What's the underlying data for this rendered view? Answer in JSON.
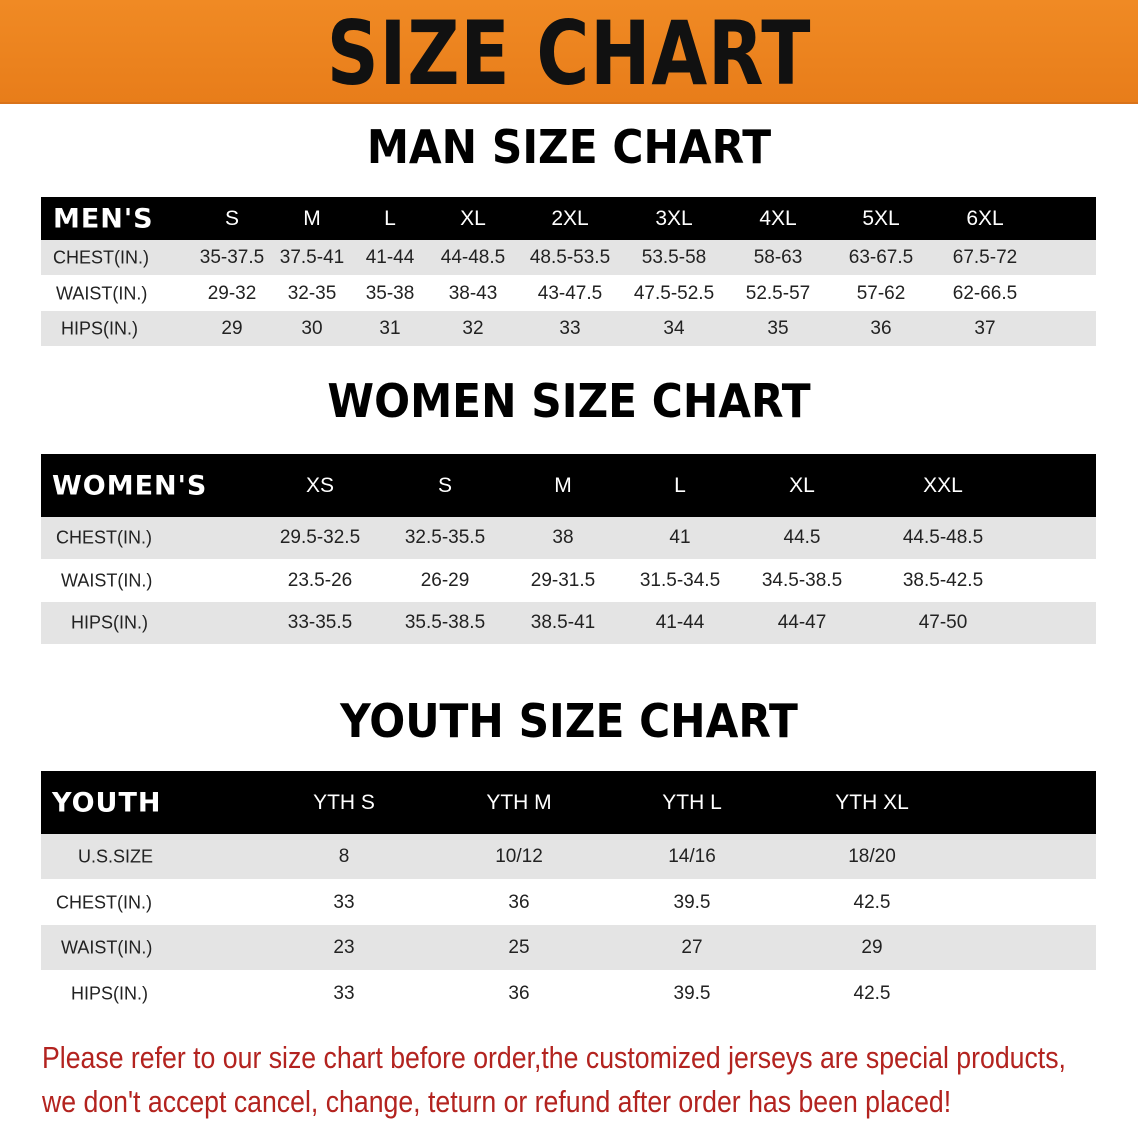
{
  "banner_title": "SIZE CHART",
  "colors": {
    "banner": "#ec8320",
    "header_row": "#000000",
    "shaded_row": "#e4e4e4",
    "notice_text": "#b3231f"
  },
  "chart_data": [
    {
      "type": "table",
      "title": "MAN SIZE CHART",
      "corner": "MEN'S",
      "columns": [
        "S",
        "M",
        "L",
        "XL",
        "2XL",
        "3XL",
        "4XL",
        "5XL",
        "6XL"
      ],
      "rows": [
        {
          "label": "CHEST(IN.)",
          "values": [
            "35-37.5",
            "37.5-41",
            "41-44",
            "44-48.5",
            "48.5-53.5",
            "53.5-58",
            "58-63",
            "63-67.5",
            "67.5-72"
          ]
        },
        {
          "label": "WAIST(IN.)",
          "values": [
            "29-32",
            "32-35",
            "35-38",
            "38-43",
            "43-47.5",
            "47.5-52.5",
            "52.5-57",
            "57-62",
            "62-66.5"
          ]
        },
        {
          "label": "HIPS(IN.)",
          "values": [
            "29",
            "30",
            "31",
            "32",
            "33",
            "34",
            "35",
            "36",
            "37"
          ]
        }
      ]
    },
    {
      "type": "table",
      "title": "WOMEN SIZE CHART",
      "corner": "WOMEN'S",
      "columns": [
        "XS",
        "S",
        "M",
        "L",
        "XL",
        "XXL"
      ],
      "rows": [
        {
          "label": "CHEST(IN.)",
          "values": [
            "29.5-32.5",
            "32.5-35.5",
            "38",
            "41",
            "44.5",
            "44.5-48.5"
          ]
        },
        {
          "label": "WAIST(IN.)",
          "values": [
            "23.5-26",
            "26-29",
            "29-31.5",
            "31.5-34.5",
            "34.5-38.5",
            "38.5-42.5"
          ]
        },
        {
          "label": "HIPS(IN.)",
          "values": [
            "33-35.5",
            "35.5-38.5",
            "38.5-41",
            "41-44",
            "44-47",
            "47-50"
          ]
        }
      ]
    },
    {
      "type": "table",
      "title": "YOUTH SIZE CHART",
      "corner": "YOUTH",
      "columns": [
        "YTH S",
        "YTH M",
        "YTH L",
        "YTH XL"
      ],
      "rows": [
        {
          "label": "U.S.SIZE",
          "values": [
            "8",
            "10/12",
            "14/16",
            "18/20"
          ]
        },
        {
          "label": "CHEST(IN.)",
          "values": [
            "33",
            "36",
            "39.5",
            "42.5"
          ]
        },
        {
          "label": "WAIST(IN.)",
          "values": [
            "23",
            "25",
            "27",
            "29"
          ]
        },
        {
          "label": "HIPS(IN.)",
          "values": [
            "33",
            "36",
            "39.5",
            "42.5"
          ]
        }
      ]
    }
  ],
  "notice": {
    "line1": "Please refer to our size chart before order,the customized jerseys are special products,",
    "line2": "we don't accept cancel, change, teturn or refund after order has been placed!"
  }
}
